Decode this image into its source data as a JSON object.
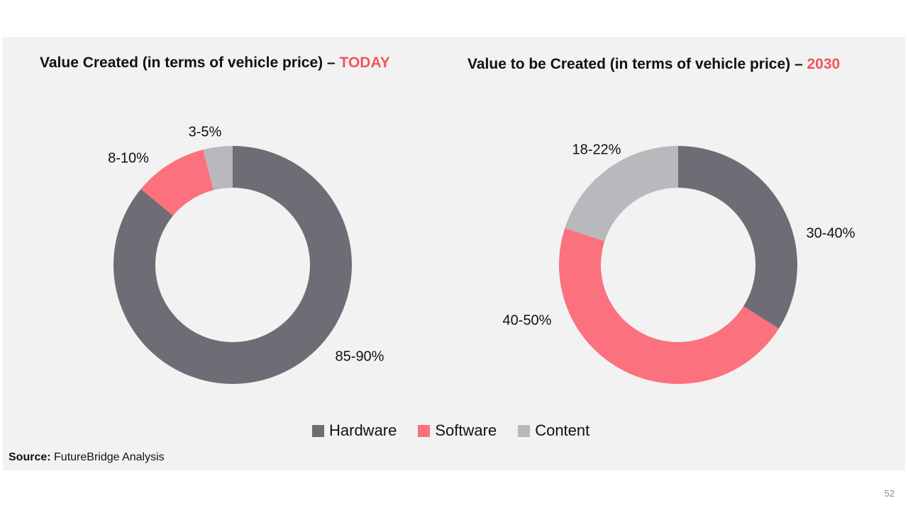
{
  "colors": {
    "hardware": "#6e6d75",
    "software": "#fb717d",
    "content": "#b9b9bd",
    "accent": "#f0555f"
  },
  "source": {
    "label": "Source:",
    "text": "FutureBridge Analysis"
  },
  "page_number": "52",
  "chart_data": [
    {
      "type": "pie",
      "donut": true,
      "title": "Value Created (in terms of vehicle price) –",
      "title_highlight": "TODAY",
      "categories": [
        "Hardware",
        "Software",
        "Content"
      ],
      "values": [
        86,
        10,
        4
      ],
      "labels": [
        "85-90%",
        "8-10%",
        "3-5%"
      ],
      "start": "12 o'clock, clockwise",
      "legend": "bottom-center"
    },
    {
      "type": "pie",
      "donut": true,
      "title": "Value to be Created (in terms of vehicle price) –",
      "title_highlight": "2030",
      "categories": [
        "Hardware",
        "Software",
        "Content"
      ],
      "values": [
        34,
        46,
        20
      ],
      "labels": [
        "30-40%",
        "40-50%",
        "18-22%"
      ],
      "start": "12 o'clock, clockwise",
      "legend": "bottom-center"
    }
  ],
  "legend": [
    {
      "label": "Hardware",
      "key": "hardware"
    },
    {
      "label": "Software",
      "key": "software"
    },
    {
      "label": "Content",
      "key": "content"
    }
  ]
}
